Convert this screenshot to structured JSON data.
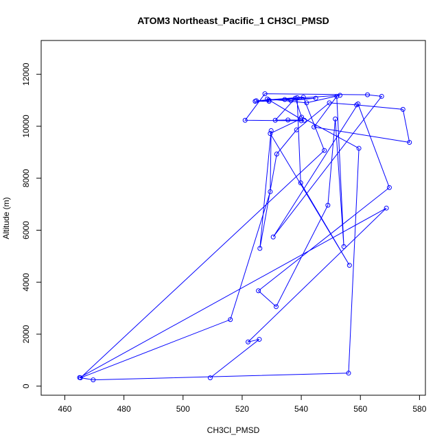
{
  "chart_data": {
    "type": "line",
    "title": "ATOM3 Northeast_Pacific_1 CH3Cl_PMSD",
    "xlabel": "CH3Cl_PMSD",
    "ylabel": "Altitude (m)",
    "xlim": [
      452,
      582
    ],
    "ylim": [
      -350,
      13300
    ],
    "x_ticks": [
      460,
      480,
      500,
      520,
      540,
      560,
      580
    ],
    "y_ticks": [
      0,
      2000,
      4000,
      6000,
      8000,
      10000,
      12000
    ],
    "grid": false,
    "marker": "open-circle",
    "color": "#0000ff",
    "series": [
      {
        "x": [
          509.2,
          525.8,
          522.0,
          568.8,
          465.0,
          469.6,
          556.0,
          559.5,
          540.1,
          538.0,
          531.2,
          535.5,
          541.0,
          540.0,
          521.0,
          527.7,
          562.4,
          567.2,
          530.5,
          559.2,
          569.8,
          525.5,
          531.5,
          549.0,
          551.5,
          554.4,
          552.0,
          544.3,
          576.6,
          574.4,
          558.7,
          549.5,
          538.4,
          531.7,
          526.0,
          529.8,
          529.5,
          516.0,
          465.3,
          547.8,
          540.7,
          524.8,
          544.9,
          536.5,
          534.4,
          529.0,
          553.1,
          541.8,
          528.5,
          539.8,
          529.5,
          556.3,
          539.8,
          538.6,
          524.4,
          529.1
        ],
        "y": [
          320,
          1800,
          1700,
          6850,
          330,
          240,
          500,
          9150,
          10350,
          11080,
          10230,
          10240,
          10230,
          10210,
          10230,
          11250,
          11210,
          11150,
          5740,
          10860,
          7640,
          3670,
          3060,
          6960,
          10280,
          5370,
          11150,
          9970,
          9380,
          10650,
          10820,
          10900,
          9860,
          8930,
          5300,
          9830,
          7480,
          2560,
          320,
          9070,
          11120,
          10980,
          11080,
          10990,
          11030,
          11010,
          11190,
          10900,
          11050,
          10280,
          9720,
          4650,
          7820,
          11100,
          10960,
          10960
        ]
      }
    ]
  }
}
